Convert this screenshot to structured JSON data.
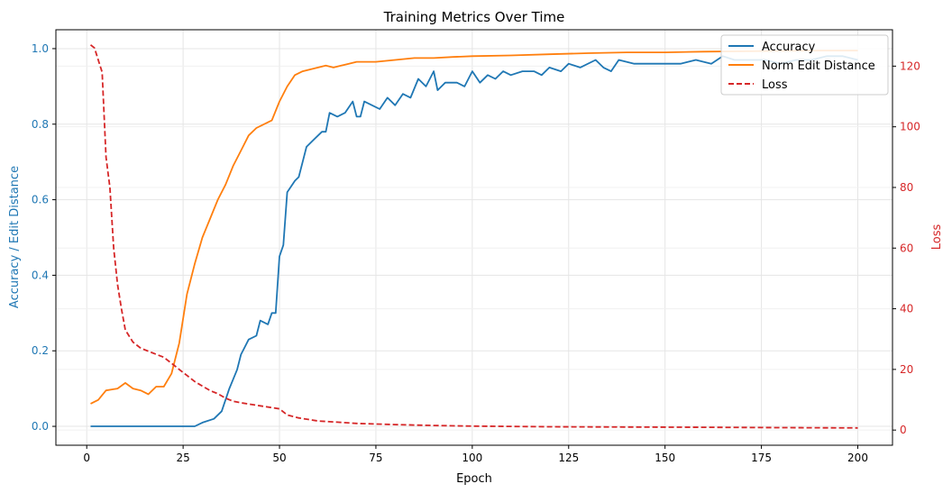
{
  "chart_data": {
    "type": "line",
    "title": "Training Metrics Over Time",
    "xlabel": "Epoch",
    "ylabel_left": "Accuracy / Edit Distance",
    "ylabel_right": "Loss",
    "xlim": [
      -8,
      209
    ],
    "ylim_left": [
      -0.05,
      1.05
    ],
    "ylim_right": [
      -5,
      132
    ],
    "xticks": [
      0,
      25,
      50,
      75,
      100,
      125,
      150,
      175,
      200
    ],
    "yticks_left": [
      0.0,
      0.2,
      0.4,
      0.6,
      0.8,
      1.0
    ],
    "yticks_right": [
      0,
      20,
      40,
      60,
      80,
      100,
      120
    ],
    "grid": true,
    "legend_position": "upper-right",
    "colors": {
      "accuracy": "#1f77b4",
      "edit": "#ff7f0e",
      "loss": "#d62728",
      "left_axis": "#1f77b4",
      "right_axis": "#d62728"
    },
    "series": [
      {
        "name": "Accuracy",
        "axis": "left",
        "style": "solid",
        "color": "#1f77b4",
        "points": [
          [
            1,
            0
          ],
          [
            10,
            0
          ],
          [
            20,
            0
          ],
          [
            28,
            0
          ],
          [
            30,
            0.01
          ],
          [
            33,
            0.02
          ],
          [
            35,
            0.04
          ],
          [
            37,
            0.1
          ],
          [
            39,
            0.15
          ],
          [
            40,
            0.19
          ],
          [
            42,
            0.23
          ],
          [
            44,
            0.24
          ],
          [
            45,
            0.28
          ],
          [
            47,
            0.27
          ],
          [
            48,
            0.3
          ],
          [
            49,
            0.3
          ],
          [
            50,
            0.45
          ],
          [
            51,
            0.48
          ],
          [
            52,
            0.62
          ],
          [
            54,
            0.65
          ],
          [
            55,
            0.66
          ],
          [
            56,
            0.7
          ],
          [
            57,
            0.74
          ],
          [
            59,
            0.76
          ],
          [
            61,
            0.78
          ],
          [
            62,
            0.78
          ],
          [
            63,
            0.83
          ],
          [
            65,
            0.82
          ],
          [
            67,
            0.83
          ],
          [
            69,
            0.86
          ],
          [
            70,
            0.82
          ],
          [
            71,
            0.82
          ],
          [
            72,
            0.86
          ],
          [
            74,
            0.85
          ],
          [
            76,
            0.84
          ],
          [
            78,
            0.87
          ],
          [
            80,
            0.85
          ],
          [
            82,
            0.88
          ],
          [
            84,
            0.87
          ],
          [
            86,
            0.92
          ],
          [
            88,
            0.9
          ],
          [
            90,
            0.94
          ],
          [
            91,
            0.89
          ],
          [
            93,
            0.91
          ],
          [
            96,
            0.91
          ],
          [
            98,
            0.9
          ],
          [
            100,
            0.94
          ],
          [
            102,
            0.91
          ],
          [
            104,
            0.93
          ],
          [
            106,
            0.92
          ],
          [
            108,
            0.94
          ],
          [
            110,
            0.93
          ],
          [
            113,
            0.94
          ],
          [
            116,
            0.94
          ],
          [
            118,
            0.93
          ],
          [
            120,
            0.95
          ],
          [
            123,
            0.94
          ],
          [
            125,
            0.96
          ],
          [
            128,
            0.95
          ],
          [
            132,
            0.97
          ],
          [
            134,
            0.95
          ],
          [
            136,
            0.94
          ],
          [
            138,
            0.97
          ],
          [
            142,
            0.96
          ],
          [
            146,
            0.96
          ],
          [
            150,
            0.96
          ],
          [
            154,
            0.96
          ],
          [
            158,
            0.97
          ],
          [
            162,
            0.96
          ],
          [
            165,
            0.98
          ],
          [
            168,
            0.97
          ],
          [
            172,
            0.97
          ],
          [
            176,
            0.97
          ],
          [
            180,
            0.96
          ],
          [
            184,
            0.97
          ],
          [
            188,
            0.97
          ],
          [
            192,
            0.98
          ],
          [
            196,
            0.98
          ],
          [
            200,
            0.97
          ]
        ]
      },
      {
        "name": "Norm Edit Distance",
        "axis": "left",
        "style": "solid",
        "color": "#ff7f0e",
        "points": [
          [
            1,
            0.06
          ],
          [
            3,
            0.07
          ],
          [
            5,
            0.095
          ],
          [
            8,
            0.1
          ],
          [
            10,
            0.115
          ],
          [
            12,
            0.1
          ],
          [
            14,
            0.095
          ],
          [
            16,
            0.085
          ],
          [
            18,
            0.105
          ],
          [
            20,
            0.105
          ],
          [
            22,
            0.14
          ],
          [
            24,
            0.22
          ],
          [
            26,
            0.35
          ],
          [
            28,
            0.43
          ],
          [
            30,
            0.5
          ],
          [
            32,
            0.55
          ],
          [
            34,
            0.6
          ],
          [
            36,
            0.64
          ],
          [
            38,
            0.69
          ],
          [
            40,
            0.73
          ],
          [
            42,
            0.77
          ],
          [
            44,
            0.79
          ],
          [
            46,
            0.8
          ],
          [
            48,
            0.81
          ],
          [
            50,
            0.86
          ],
          [
            52,
            0.9
          ],
          [
            54,
            0.93
          ],
          [
            56,
            0.94
          ],
          [
            58,
            0.945
          ],
          [
            60,
            0.95
          ],
          [
            62,
            0.955
          ],
          [
            64,
            0.95
          ],
          [
            66,
            0.955
          ],
          [
            68,
            0.96
          ],
          [
            70,
            0.965
          ],
          [
            75,
            0.965
          ],
          [
            80,
            0.97
          ],
          [
            85,
            0.975
          ],
          [
            90,
            0.975
          ],
          [
            95,
            0.978
          ],
          [
            100,
            0.98
          ],
          [
            110,
            0.982
          ],
          [
            120,
            0.985
          ],
          [
            130,
            0.988
          ],
          [
            140,
            0.99
          ],
          [
            150,
            0.99
          ],
          [
            160,
            0.992
          ],
          [
            170,
            0.993
          ],
          [
            180,
            0.994
          ],
          [
            190,
            0.995
          ],
          [
            200,
            0.995
          ]
        ]
      },
      {
        "name": "Loss",
        "axis": "right",
        "style": "dashed",
        "color": "#d62728",
        "points": [
          [
            1,
            127
          ],
          [
            2,
            126
          ],
          [
            3,
            122
          ],
          [
            4,
            118
          ],
          [
            5,
            90
          ],
          [
            6,
            80
          ],
          [
            7,
            60
          ],
          [
            8,
            48
          ],
          [
            9,
            40
          ],
          [
            10,
            33
          ],
          [
            12,
            29
          ],
          [
            14,
            27
          ],
          [
            16,
            26
          ],
          [
            18,
            25
          ],
          [
            20,
            24
          ],
          [
            22,
            22
          ],
          [
            24,
            20
          ],
          [
            26,
            18
          ],
          [
            28,
            16
          ],
          [
            30,
            14.5
          ],
          [
            32,
            13
          ],
          [
            34,
            12
          ],
          [
            36,
            10.5
          ],
          [
            38,
            9.5
          ],
          [
            40,
            9
          ],
          [
            45,
            8
          ],
          [
            50,
            7
          ],
          [
            52,
            5
          ],
          [
            55,
            4
          ],
          [
            60,
            3
          ],
          [
            65,
            2.6
          ],
          [
            70,
            2.2
          ],
          [
            80,
            1.8
          ],
          [
            90,
            1.5
          ],
          [
            100,
            1.3
          ],
          [
            120,
            1.1
          ],
          [
            140,
            1
          ],
          [
            160,
            0.9
          ],
          [
            180,
            0.8
          ],
          [
            200,
            0.7
          ]
        ]
      }
    ]
  }
}
